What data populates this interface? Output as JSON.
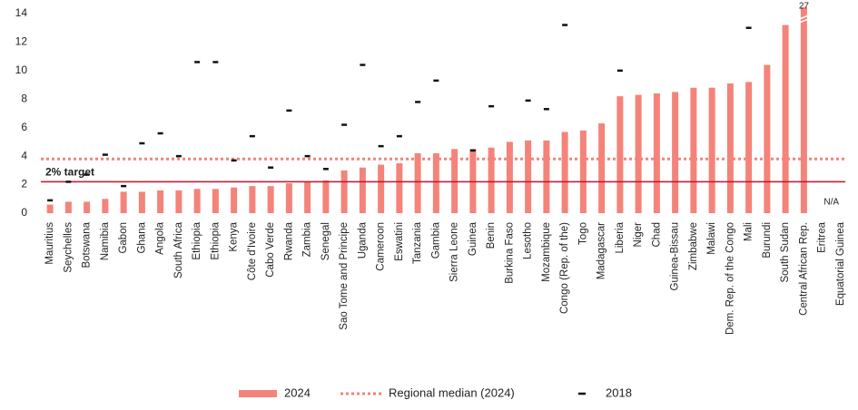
{
  "chart_data": {
    "type": "bar",
    "categories": [
      "Mauritius",
      "Seychelles",
      "Botswana",
      "Namibia",
      "Gabon",
      "Ghana",
      "Angola",
      "South Africa",
      "Ethiopia",
      "Ethiopia",
      "Kenya",
      "Côte d'Ivoire",
      "Cabo Verde",
      "Rwanda",
      "Zambia",
      "Senegal",
      "Sao Tome and Principe",
      "Uganda",
      "Cameroon",
      "Eswatini",
      "Tanzania",
      "Gambia",
      "Sierra Leone",
      "Guinea",
      "Benin",
      "Burkina Faso",
      "Lesotho",
      "Mozambique",
      "Congo (Rep. of the)",
      "Togo",
      "Madagascar",
      "Liberia",
      "Niger",
      "Chad",
      "Guinea-Bissau",
      "Zimbabwe",
      "Malawi",
      "Dem. Rep. of the Congo",
      "Mali",
      "Burundi",
      "South Sudan",
      "Central African Rep.",
      "Eritrea",
      "Equatorial Guinea"
    ],
    "series": [
      {
        "name": "2024",
        "color": "#f4837a",
        "mark": "bar",
        "values": [
          0.6,
          0.8,
          0.8,
          1.0,
          1.5,
          1.5,
          1.6,
          1.6,
          1.7,
          1.7,
          1.8,
          1.9,
          1.9,
          2.1,
          2.2,
          2.3,
          3.0,
          3.2,
          3.4,
          3.5,
          4.2,
          4.2,
          4.5,
          4.5,
          4.6,
          5.0,
          5.1,
          5.1,
          5.7,
          5.8,
          6.3,
          8.2,
          8.3,
          8.4,
          8.5,
          8.8,
          8.8,
          9.1,
          9.2,
          10.4,
          13.2,
          27,
          null,
          null
        ],
        "value_labels": [
          null,
          null,
          null,
          null,
          null,
          null,
          null,
          null,
          null,
          null,
          null,
          null,
          null,
          null,
          null,
          null,
          null,
          null,
          null,
          null,
          null,
          null,
          null,
          null,
          null,
          null,
          null,
          null,
          null,
          null,
          null,
          null,
          null,
          null,
          null,
          null,
          null,
          null,
          null,
          null,
          null,
          "27",
          "N/A",
          null
        ]
      },
      {
        "name": "2018",
        "color": "#111111",
        "mark": "dash",
        "values": [
          0.9,
          2.2,
          2.7,
          4.1,
          1.9,
          4.9,
          5.6,
          4.0,
          10.6,
          10.6,
          3.7,
          5.4,
          3.2,
          7.2,
          4.0,
          3.1,
          6.2,
          10.4,
          4.7,
          5.4,
          7.8,
          9.3,
          null,
          4.4,
          7.5,
          null,
          7.9,
          7.3,
          13.2,
          null,
          null,
          10.0,
          null,
          null,
          null,
          null,
          null,
          null,
          13.0,
          null,
          null,
          null,
          null,
          null
        ]
      }
    ],
    "median": {
      "name": "Regional median (2024)",
      "value": 3.8,
      "color": "#f4837a"
    },
    "target": {
      "label": "2% target",
      "value": 2.2,
      "color": "#c8102e"
    },
    "ylim": [
      0,
      14
    ],
    "yticks": [
      0,
      2,
      4,
      6,
      8,
      10,
      12,
      14
    ],
    "grid": false,
    "legend": "bottom"
  }
}
